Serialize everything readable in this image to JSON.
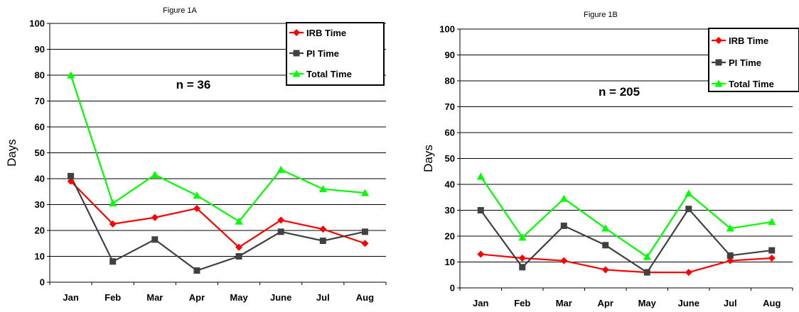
{
  "chart_data": [
    {
      "type": "line",
      "title": "Figure 1A",
      "ylabel": "Days",
      "xlabel": "",
      "ylim": [
        0,
        100
      ],
      "yticks": [
        0,
        10,
        20,
        30,
        40,
        50,
        60,
        70,
        80,
        90,
        100
      ],
      "grid": "horizontal",
      "legend_position": "top-right",
      "annotation": "n = 36",
      "categories": [
        "Jan",
        "Feb",
        "Mar",
        "Apr",
        "May",
        "June",
        "Jul",
        "Aug"
      ],
      "series": [
        {
          "name": "IRB Time",
          "color": "#ff0000",
          "marker": "diamond",
          "values": [
            39,
            22.5,
            25,
            28.5,
            13.5,
            24,
            20.5,
            15
          ]
        },
        {
          "name": "PI Time",
          "color": "#404040",
          "marker": "square",
          "values": [
            41,
            8,
            16.5,
            4.5,
            10,
            19.5,
            16,
            19.5
          ]
        },
        {
          "name": "Total Time",
          "color": "#00ff00",
          "marker": "triangle",
          "values": [
            80,
            30.5,
            41.5,
            33.5,
            23.5,
            43.5,
            36,
            34.5
          ]
        }
      ]
    },
    {
      "type": "line",
      "title": "Figure 1B",
      "ylabel": "Days",
      "xlabel": "",
      "ylim": [
        0,
        100
      ],
      "yticks": [
        0,
        10,
        20,
        30,
        40,
        50,
        60,
        70,
        80,
        90,
        100
      ],
      "grid": "horizontal",
      "legend_position": "top-right",
      "annotation": "n = 205",
      "categories": [
        "Jan",
        "Feb",
        "Mar",
        "Apr",
        "May",
        "June",
        "Jul",
        "Aug"
      ],
      "series": [
        {
          "name": "IRB Time",
          "color": "#ff0000",
          "marker": "diamond",
          "values": [
            13,
            11.5,
            10.5,
            7,
            6,
            6,
            10.5,
            11.5
          ]
        },
        {
          "name": "PI Time",
          "color": "#404040",
          "marker": "square",
          "values": [
            30,
            8,
            24,
            16.5,
            6,
            30.5,
            12.5,
            14.5
          ]
        },
        {
          "name": "Total Time",
          "color": "#00ff00",
          "marker": "triangle",
          "values": [
            43,
            19.5,
            34.5,
            23,
            12,
            36.5,
            23,
            25.5
          ]
        }
      ]
    }
  ]
}
